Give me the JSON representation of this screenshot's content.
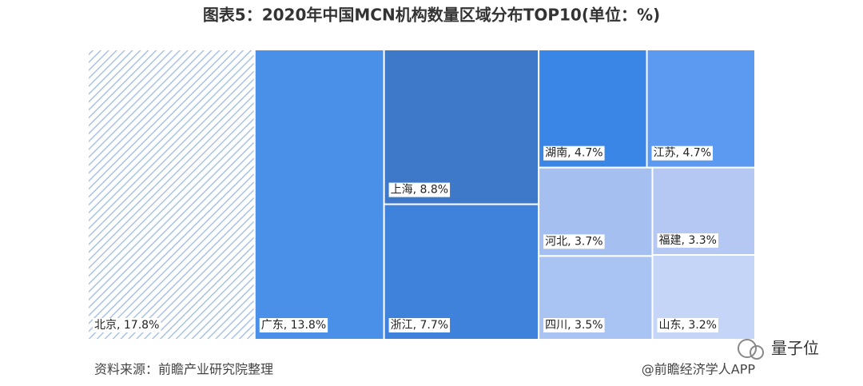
{
  "chart_data": {
    "type": "treemap",
    "title": "图表5：2020年中国MCN机构数量区域分布TOP10(单位：%)",
    "labels": [
      "北京, 17.8%",
      "广东, 13.8%",
      "上海, 8.8%",
      "浙江, 7.7%",
      "湖南, 4.7%",
      "江苏, 4.7%",
      "河北, 3.7%",
      "四川, 3.5%",
      "福建, 3.3%",
      "山东, 3.2%"
    ],
    "values": [
      17.8,
      13.8,
      8.8,
      7.7,
      4.7,
      4.7,
      3.7,
      3.5,
      3.3,
      3.2
    ],
    "colors": [
      "#a9c2e6",
      "#4a8fe8",
      "#3d78c9",
      "#3f82dc",
      "#3a86e6",
      "#5b9af0",
      "#a5c0f0",
      "#a9c3f2",
      "#b5c8f3",
      "#c5d5f7"
    ],
    "hatched": [
      true,
      false,
      false,
      false,
      false,
      false,
      false,
      false,
      false,
      false
    ],
    "source": "资料来源：前瞻产业研究院整理",
    "credit": "@前瞻经济学人APP",
    "watermark": "量子位"
  }
}
